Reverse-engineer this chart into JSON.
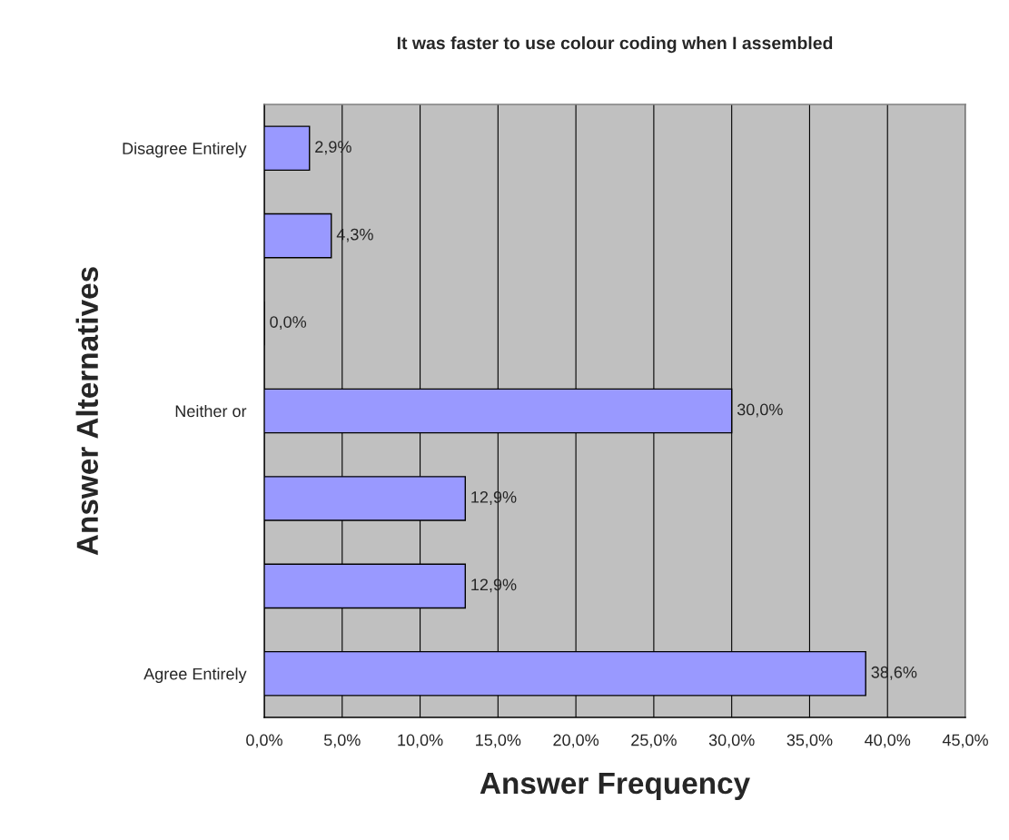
{
  "chart_data": {
    "type": "bar",
    "orientation": "horizontal",
    "title": "It was faster to use colour coding when I assembled",
    "xlabel": "Answer Frequency",
    "ylabel": "Answer Alternatives",
    "categories": [
      "Disagree Entirely",
      null,
      null,
      "Neither or",
      null,
      null,
      "Agree Entirely"
    ],
    "values": [
      2.9,
      4.3,
      0.0,
      30.0,
      12.9,
      12.9,
      38.6
    ],
    "value_labels": [
      "2,9%",
      "4,3%",
      "0,0%",
      "30,0%",
      "12,9%",
      "12,9%",
      "38,6%"
    ],
    "color": "#9999ff",
    "xlim": [
      0,
      45
    ],
    "xticks": [
      {
        "value": 0,
        "label": "0,0%"
      },
      {
        "value": 5,
        "label": "5,0%"
      },
      {
        "value": 10,
        "label": "10,0%"
      },
      {
        "value": 15,
        "label": "15,0%"
      },
      {
        "value": 20,
        "label": "20,0%"
      },
      {
        "value": 25,
        "label": "25,0%"
      },
      {
        "value": 30,
        "label": "30,0%"
      },
      {
        "value": 35,
        "label": "35,0%"
      },
      {
        "value": 40,
        "label": "40,0%"
      },
      {
        "value": 45,
        "label": "45,0%"
      }
    ],
    "grid": "x"
  }
}
